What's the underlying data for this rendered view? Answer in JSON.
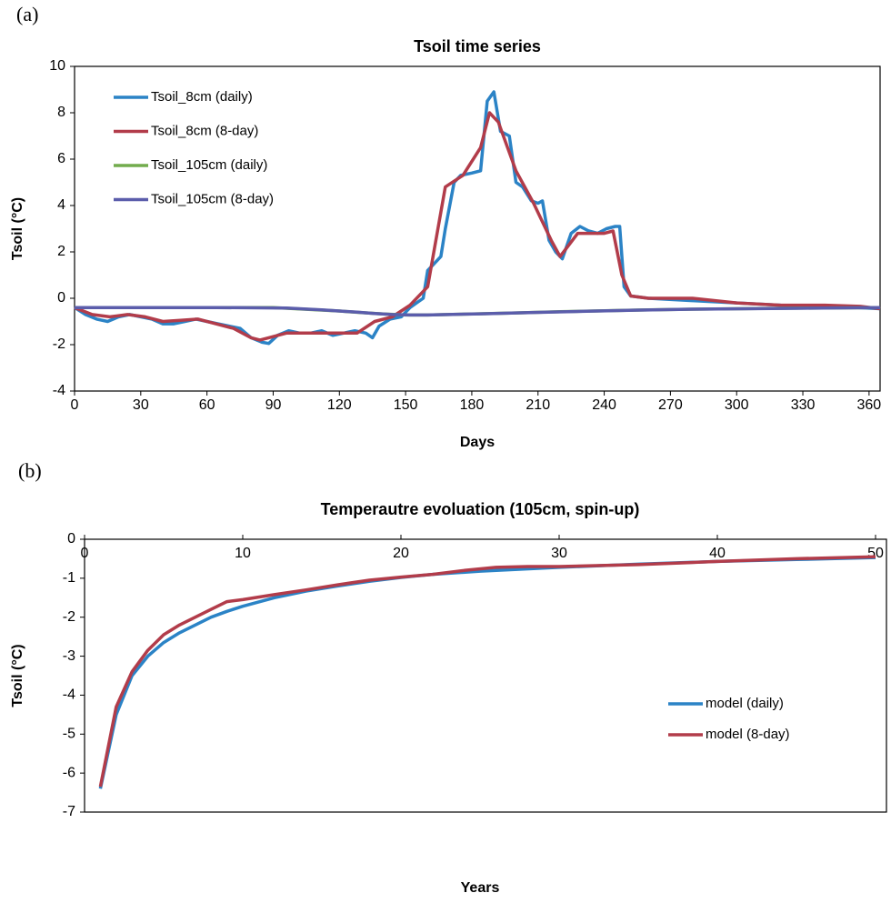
{
  "chart_data": [
    {
      "type": "line",
      "panel_label": "(a)",
      "title": "Tsoil time series",
      "xlabel": "Days",
      "ylabel": "Tsoil (°C)",
      "xlim": [
        0,
        365
      ],
      "xticks": [
        0,
        30,
        60,
        90,
        120,
        150,
        180,
        210,
        240,
        270,
        300,
        330,
        360
      ],
      "ylim": [
        -4,
        10
      ],
      "yticks": [
        -4,
        -2,
        0,
        2,
        4,
        6,
        8,
        10
      ],
      "legend": "upper left",
      "x_axis_position": "bottom",
      "series": [
        {
          "name": "Tsoil_8cm (daily)",
          "color": "#2b83c6",
          "x": [
            0,
            5,
            10,
            15,
            20,
            25,
            30,
            35,
            40,
            45,
            50,
            55,
            60,
            65,
            70,
            75,
            80,
            85,
            88,
            92,
            97,
            102,
            107,
            112,
            117,
            122,
            127,
            132,
            135,
            138,
            143,
            148,
            152,
            155,
            158,
            160,
            163,
            166,
            168,
            172,
            175,
            180,
            184,
            187,
            190,
            193,
            197,
            200,
            203,
            207,
            210,
            212,
            215,
            218,
            221,
            225,
            229,
            233,
            237,
            241,
            245,
            247,
            249,
            252,
            260,
            280,
            300,
            320,
            340,
            355,
            365
          ],
          "values": [
            -0.4,
            -0.7,
            -0.9,
            -1.0,
            -0.8,
            -0.7,
            -0.8,
            -0.9,
            -1.1,
            -1.1,
            -1.0,
            -0.9,
            -1.0,
            -1.1,
            -1.2,
            -1.3,
            -1.7,
            -1.9,
            -1.95,
            -1.6,
            -1.4,
            -1.5,
            -1.5,
            -1.4,
            -1.6,
            -1.5,
            -1.4,
            -1.5,
            -1.7,
            -1.2,
            -0.9,
            -0.8,
            -0.4,
            -0.2,
            0.0,
            1.2,
            1.5,
            1.8,
            3.0,
            5.0,
            5.3,
            5.4,
            5.5,
            8.5,
            8.9,
            7.2,
            7.0,
            5.0,
            4.8,
            4.2,
            4.1,
            4.2,
            2.5,
            2.0,
            1.7,
            2.8,
            3.1,
            2.9,
            2.8,
            3.0,
            3.1,
            3.1,
            0.5,
            0.1,
            0.0,
            -0.1,
            -0.2,
            -0.3,
            -0.35,
            -0.4,
            -0.45
          ]
        },
        {
          "name": "Tsoil_8cm (8-day)",
          "color": "#b23c4a",
          "x": [
            0,
            8,
            16,
            24,
            32,
            40,
            48,
            56,
            64,
            72,
            80,
            84,
            88,
            96,
            104,
            112,
            120,
            128,
            136,
            144,
            152,
            160,
            168,
            176,
            184,
            188,
            192,
            200,
            208,
            216,
            220,
            224,
            228,
            232,
            240,
            244,
            248,
            252,
            260,
            280,
            300,
            320,
            340,
            356,
            365
          ],
          "values": [
            -0.4,
            -0.7,
            -0.8,
            -0.7,
            -0.8,
            -1.0,
            -0.95,
            -0.9,
            -1.1,
            -1.3,
            -1.7,
            -1.8,
            -1.7,
            -1.5,
            -1.5,
            -1.5,
            -1.5,
            -1.5,
            -1.0,
            -0.8,
            -0.3,
            0.5,
            4.8,
            5.3,
            6.5,
            8.0,
            7.6,
            5.5,
            4.1,
            2.5,
            1.8,
            2.3,
            2.8,
            2.8,
            2.8,
            2.9,
            1.0,
            0.1,
            0.0,
            0.0,
            -0.2,
            -0.3,
            -0.3,
            -0.35,
            -0.45
          ]
        },
        {
          "name": "Tsoil_105cm (daily)",
          "color": "#72ac4d",
          "x": [
            0,
            30,
            60,
            90,
            100,
            110,
            120,
            130,
            140,
            150,
            160,
            180,
            200,
            220,
            240,
            260,
            280,
            300,
            320,
            340,
            365
          ],
          "values": [
            -0.4,
            -0.4,
            -0.4,
            -0.4,
            -0.45,
            -0.5,
            -0.55,
            -0.62,
            -0.68,
            -0.72,
            -0.72,
            -0.68,
            -0.63,
            -0.58,
            -0.54,
            -0.5,
            -0.47,
            -0.45,
            -0.43,
            -0.42,
            -0.4
          ]
        },
        {
          "name": "Tsoil_105cm (8-day)",
          "color": "#5b5dab",
          "x": [
            0,
            32,
            64,
            96,
            104,
            112,
            120,
            128,
            136,
            144,
            152,
            160,
            184,
            208,
            232,
            256,
            280,
            304,
            328,
            352,
            365
          ],
          "values": [
            -0.4,
            -0.4,
            -0.4,
            -0.42,
            -0.46,
            -0.5,
            -0.55,
            -0.6,
            -0.66,
            -0.7,
            -0.72,
            -0.72,
            -0.67,
            -0.61,
            -0.56,
            -0.51,
            -0.47,
            -0.45,
            -0.43,
            -0.41,
            -0.4
          ]
        }
      ]
    },
    {
      "type": "line",
      "panel_label": "(b)",
      "title": "Temperautre evoluation (105cm, spin-up)",
      "xlabel": "Years",
      "ylabel": "Tsoil (°C)",
      "xlim": [
        0,
        50
      ],
      "xticks": [
        0,
        10,
        20,
        30,
        40,
        50
      ],
      "ylim": [
        -7,
        0
      ],
      "yticks": [
        -7,
        -6,
        -5,
        -4,
        -3,
        -2,
        -1,
        0
      ],
      "legend": "lower right",
      "x_axis_position": "top",
      "series": [
        {
          "name": "model (daily)",
          "color": "#2b83c6",
          "x": [
            1,
            2,
            3,
            4,
            5,
            6,
            7,
            8,
            9,
            10,
            12,
            14,
            16,
            18,
            20,
            22,
            25,
            30,
            35,
            40,
            45,
            50
          ],
          "values": [
            -6.4,
            -4.5,
            -3.5,
            -3.0,
            -2.65,
            -2.4,
            -2.2,
            -2.0,
            -1.85,
            -1.72,
            -1.5,
            -1.33,
            -1.2,
            -1.08,
            -0.98,
            -0.9,
            -0.82,
            -0.72,
            -0.64,
            -0.57,
            -0.52,
            -0.47
          ]
        },
        {
          "name": "model (8-day)",
          "color": "#b23c4a",
          "x": [
            1,
            2,
            3,
            4,
            5,
            6,
            7,
            8,
            9,
            10,
            12,
            14,
            16,
            18,
            20,
            22,
            24,
            26,
            28,
            30,
            35,
            40,
            45,
            50
          ],
          "values": [
            -6.35,
            -4.3,
            -3.4,
            -2.85,
            -2.45,
            -2.2,
            -2.0,
            -1.8,
            -1.6,
            -1.55,
            -1.42,
            -1.3,
            -1.17,
            -1.05,
            -0.97,
            -0.9,
            -0.8,
            -0.72,
            -0.7,
            -0.7,
            -0.65,
            -0.57,
            -0.5,
            -0.45
          ]
        }
      ]
    }
  ]
}
